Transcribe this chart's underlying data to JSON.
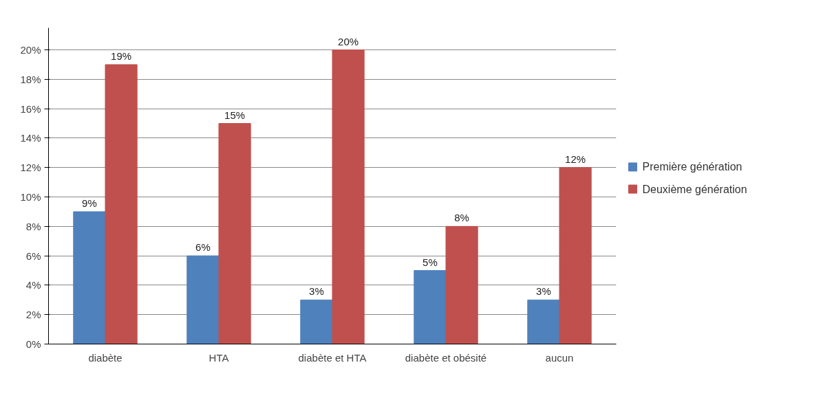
{
  "chart_data": {
    "type": "bar",
    "categories": [
      "diabète",
      "HTA",
      "diabète et HTA",
      "diabète et obésité",
      "aucun"
    ],
    "series": [
      {
        "name": "Première génération",
        "color": "#4f81bd",
        "values": [
          9,
          6,
          3,
          5,
          3
        ],
        "value_labels": [
          "9%",
          "6%",
          "3%",
          "5%",
          "3%"
        ]
      },
      {
        "name": "Deuxième génération",
        "color": "#c0504d",
        "values": [
          19,
          15,
          20,
          8,
          12
        ],
        "value_labels": [
          "19%",
          "15%",
          "20%",
          "8%",
          "12%"
        ]
      }
    ],
    "ylim": [
      0,
      21.5
    ],
    "yticks": [
      {
        "value": 0,
        "label": "0%"
      },
      {
        "value": 2,
        "label": "2%"
      },
      {
        "value": 4,
        "label": "4%"
      },
      {
        "value": 6,
        "label": "6%"
      },
      {
        "value": 8,
        "label": "8%"
      },
      {
        "value": 10,
        "label": "10%"
      },
      {
        "value": 12,
        "label": "12%"
      },
      {
        "value": 14,
        "label": "14%"
      },
      {
        "value": 16,
        "label": "16%"
      },
      {
        "value": 18,
        "label": "18%"
      },
      {
        "value": 20,
        "label": "20%"
      }
    ],
    "grid": "y",
    "legend": "right"
  }
}
